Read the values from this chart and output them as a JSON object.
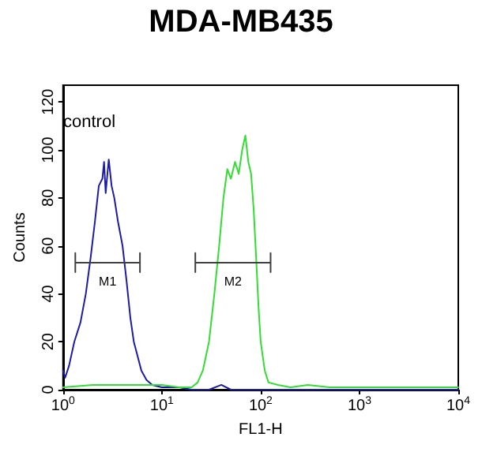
{
  "chart_data": {
    "type": "line",
    "title": "MDA-MB435",
    "xlabel": "FL1-H",
    "ylabel": "Counts",
    "log": "x",
    "xlim": [
      1,
      10000
    ],
    "ylim": [
      0,
      127
    ],
    "xticks": [
      {
        "value": 1,
        "label": "10$^{0}$"
      },
      {
        "value": 10,
        "label": "10$^{1}$"
      },
      {
        "value": 100,
        "label": "10$^{2}$"
      },
      {
        "value": 1000,
        "label": "10$^{3}$"
      },
      {
        "value": 10000,
        "label": "10$^{4}$"
      }
    ],
    "yticks": [
      0,
      20,
      40,
      60,
      80,
      100,
      120
    ],
    "grid": false,
    "marker": "none",
    "line_style": "solid",
    "series": [
      {
        "color": "#1c1ca8",
        "x": [
          1.0,
          1.05,
          1.15,
          1.3,
          1.5,
          1.7,
          1.9,
          2.1,
          2.3,
          2.5,
          2.6,
          2.7,
          2.9,
          3.1,
          3.3,
          3.6,
          4.0,
          4.4,
          4.8,
          5.2,
          5.6,
          6.2,
          7,
          8,
          10,
          15,
          20,
          30,
          40,
          50,
          80,
          150,
          10000
        ],
        "values": [
          8,
          5,
          10,
          20,
          28,
          40,
          55,
          70,
          85,
          88,
          95,
          82,
          96,
          85,
          80,
          70,
          60,
          45,
          30,
          20,
          15,
          8,
          4,
          2,
          1,
          1,
          0,
          0,
          2,
          0,
          0,
          0,
          0
        ]
      },
      {
        "color": "#33dd33",
        "x": [
          1,
          2,
          5,
          10,
          15,
          20,
          23,
          26,
          30,
          34,
          38,
          42,
          46,
          50,
          55,
          60,
          65,
          70,
          75,
          80,
          85,
          90,
          95,
          100,
          110,
          120,
          150,
          200,
          300,
          500,
          10000
        ],
        "values": [
          1,
          2,
          2,
          2,
          1,
          1,
          3,
          8,
          20,
          40,
          60,
          80,
          92,
          88,
          95,
          90,
          100,
          106,
          95,
          90,
          75,
          55,
          35,
          20,
          8,
          3,
          2,
          1,
          2,
          1,
          1
        ]
      },
      {
        "name": "M1",
        "color": "#404040",
        "x": [
          1.33,
          1.33,
          1.33,
          6.0,
          6.0,
          6.0
        ],
        "values": [
          49,
          57,
          53,
          53,
          57,
          49
        ]
      },
      {
        "name": "M2",
        "color": "#404040",
        "x": [
          21.8,
          21.8,
          21.8,
          126,
          126,
          126
        ],
        "values": [
          49,
          57,
          53,
          53,
          57,
          49
        ]
      }
    ],
    "annotations": [
      "control"
    ]
  }
}
